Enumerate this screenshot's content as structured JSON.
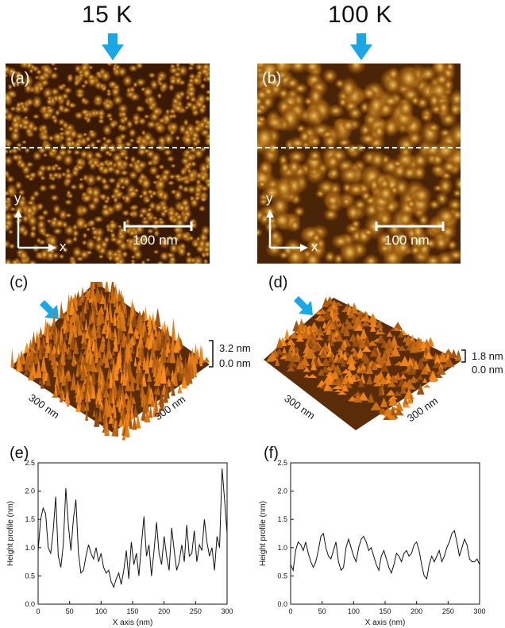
{
  "temps": {
    "left": "15 K",
    "right": "100 K"
  },
  "panels": {
    "a": {
      "label": "(a)",
      "scale": "100 nm",
      "axis_x": "x",
      "axis_y": "y"
    },
    "b": {
      "label": "(b)",
      "scale": "100 nm",
      "axis_x": "x",
      "axis_y": "y"
    },
    "c": {
      "label": "(c)",
      "height_max": "3.2 nm",
      "height_min": "0.0 nm",
      "side_left": "300 nm",
      "side_right": "300 nm"
    },
    "d": {
      "label": "(d)",
      "height_max": "1.8 nm",
      "height_min": "0.0 nm",
      "side_left": "300 nm",
      "side_right": "300 nm"
    },
    "e": {
      "label": "(e)"
    },
    "f": {
      "label": "(f)"
    }
  },
  "colors": {
    "arrow": "#1aa7e6",
    "afm_dark": "#2a1202",
    "afm_mid": "#9a5a0e",
    "afm_light": "#f3c35a"
  },
  "chart_data": [
    {
      "type": "line",
      "panel": "(e)",
      "xlabel": "X axis (nm)",
      "ylabel": "Height profile (nm)",
      "xlim": [
        0,
        300
      ],
      "ylim": [
        0,
        2.5
      ],
      "xticks": [
        "0",
        "50",
        "100",
        "150",
        "200",
        "250",
        "300"
      ],
      "yticks": [
        "0.0",
        "0.5",
        "1.0",
        "1.5",
        "2.0",
        "2.5"
      ],
      "series": [
        {
          "x": [
            0,
            4,
            8,
            12,
            16,
            20,
            24,
            28,
            32,
            36,
            40,
            44,
            48,
            52,
            56,
            60,
            64,
            68,
            72,
            76,
            80,
            84,
            88,
            92,
            96,
            100,
            104,
            108,
            112,
            116,
            120,
            124,
            128,
            132,
            136,
            140,
            144,
            148,
            152,
            156,
            160,
            164,
            168,
            172,
            176,
            180,
            184,
            188,
            192,
            196,
            200,
            204,
            208,
            212,
            216,
            220,
            224,
            228,
            232,
            236,
            240,
            244,
            248,
            252,
            256,
            260,
            264,
            268,
            272,
            276,
            280,
            284,
            288,
            292,
            296,
            300
          ],
          "y": [
            0.95,
            1.5,
            1.7,
            1.6,
            1.0,
            0.9,
            1.3,
            1.9,
            0.85,
            0.65,
            1.05,
            2.05,
            1.4,
            0.95,
            1.5,
            1.85,
            0.9,
            0.55,
            0.6,
            0.85,
            1.05,
            0.9,
            0.8,
            1.0,
            0.75,
            0.9,
            0.65,
            0.55,
            0.6,
            0.4,
            0.3,
            0.45,
            0.55,
            0.35,
            0.6,
            0.95,
            0.45,
            1.1,
            0.7,
            0.9,
            0.5,
            1.05,
            1.55,
            0.85,
            1.05,
            0.5,
            0.95,
            1.45,
            0.9,
            0.7,
            1.2,
            0.85,
            0.6,
            1.35,
            0.95,
            0.6,
            0.75,
            1.05,
            0.75,
            1.4,
            0.85,
            0.9,
            1.3,
            0.75,
            1.05,
            0.95,
            1.5,
            1.1,
            0.85,
            1.0,
            0.6,
            1.2,
            1.0,
            2.4,
            1.85,
            1.25
          ]
        }
      ]
    },
    {
      "type": "line",
      "panel": "(f)",
      "xlabel": "X axis (nm)",
      "ylabel": "Height profile (nm)",
      "xlim": [
        0,
        300
      ],
      "ylim": [
        0,
        2.5
      ],
      "xticks": [
        "0",
        "50",
        "100",
        "150",
        "200",
        "250",
        "300"
      ],
      "yticks": [
        "0.0",
        "0.5",
        "1.0",
        "1.5",
        "2.0",
        "2.5"
      ],
      "series": [
        {
          "x": [
            0,
            4,
            8,
            12,
            16,
            20,
            24,
            28,
            32,
            36,
            40,
            44,
            48,
            52,
            56,
            60,
            64,
            68,
            72,
            76,
            80,
            84,
            88,
            92,
            96,
            100,
            104,
            108,
            112,
            116,
            120,
            124,
            128,
            132,
            136,
            140,
            144,
            148,
            152,
            156,
            160,
            164,
            168,
            172,
            176,
            180,
            184,
            188,
            192,
            196,
            200,
            204,
            208,
            212,
            216,
            220,
            224,
            228,
            232,
            236,
            240,
            244,
            248,
            252,
            256,
            260,
            264,
            268,
            272,
            276,
            280,
            284,
            288,
            292,
            296,
            300
          ],
          "y": [
            0.7,
            0.6,
            0.95,
            1.1,
            1.05,
            0.95,
            1.1,
            0.9,
            0.75,
            0.65,
            0.75,
            0.95,
            1.2,
            1.25,
            1.0,
            0.85,
            0.8,
            0.95,
            1.1,
            0.75,
            0.6,
            0.65,
            1.0,
            1.15,
            1.0,
            0.85,
            0.75,
            1.0,
            1.15,
            1.2,
            1.1,
            0.95,
            1.0,
            0.85,
            0.7,
            0.6,
            0.85,
            0.95,
            0.8,
            0.65,
            0.55,
            0.7,
            0.9,
            0.85,
            0.75,
            0.9,
            0.95,
            0.85,
            0.9,
            1.05,
            1.1,
            0.95,
            0.7,
            0.5,
            0.45,
            0.7,
            0.85,
            0.75,
            0.85,
            0.95,
            0.75,
            0.85,
            1.0,
            1.1,
            1.25,
            1.3,
            1.1,
            0.85,
            1.0,
            1.15,
            1.05,
            0.8,
            0.75,
            0.75,
            0.8,
            0.7
          ]
        }
      ]
    }
  ]
}
